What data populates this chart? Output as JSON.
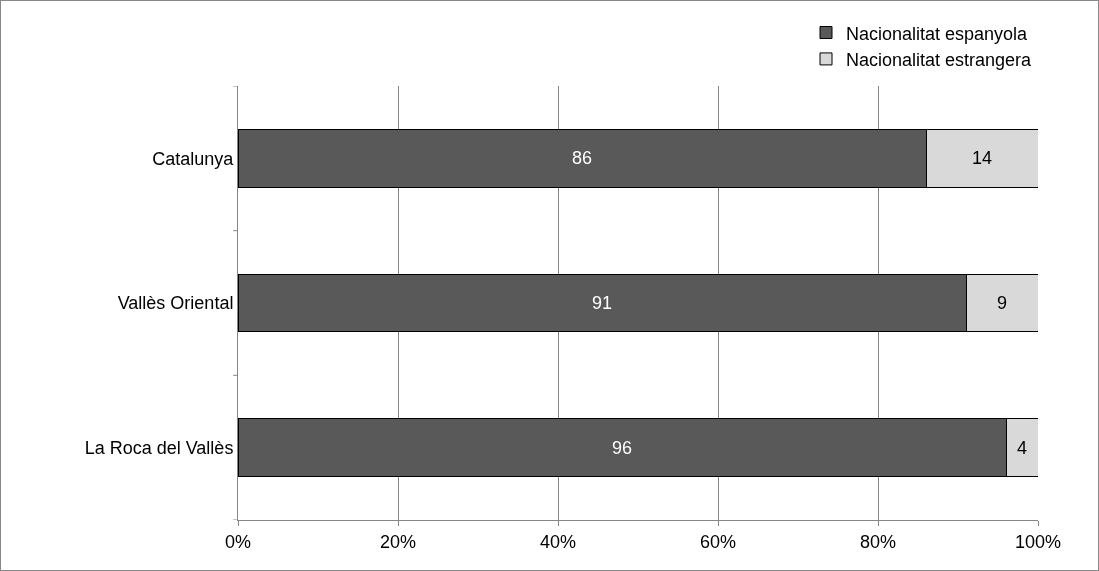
{
  "chart_data": {
    "type": "bar",
    "orientation": "horizontal",
    "stacked": true,
    "categories": [
      "Catalunya",
      "Vallès Oriental",
      "La Roca del Vallès"
    ],
    "series": [
      {
        "name": "Nacionalitat espanyola",
        "color": "#595959",
        "values": [
          86,
          91,
          96
        ]
      },
      {
        "name": "Nacionalitat estrangera",
        "color": "#d9d9d9",
        "values": [
          14,
          9,
          4
        ]
      }
    ],
    "xlim": [
      0,
      100
    ],
    "xticks": [
      {
        "value": 0,
        "label": "0%"
      },
      {
        "value": 20,
        "label": "20%"
      },
      {
        "value": 40,
        "label": "40%"
      },
      {
        "value": 60,
        "label": "60%"
      },
      {
        "value": 80,
        "label": "80%"
      },
      {
        "value": 100,
        "label": "100%"
      }
    ],
    "grid": "x",
    "legend": "top right",
    "data_labels": true
  }
}
